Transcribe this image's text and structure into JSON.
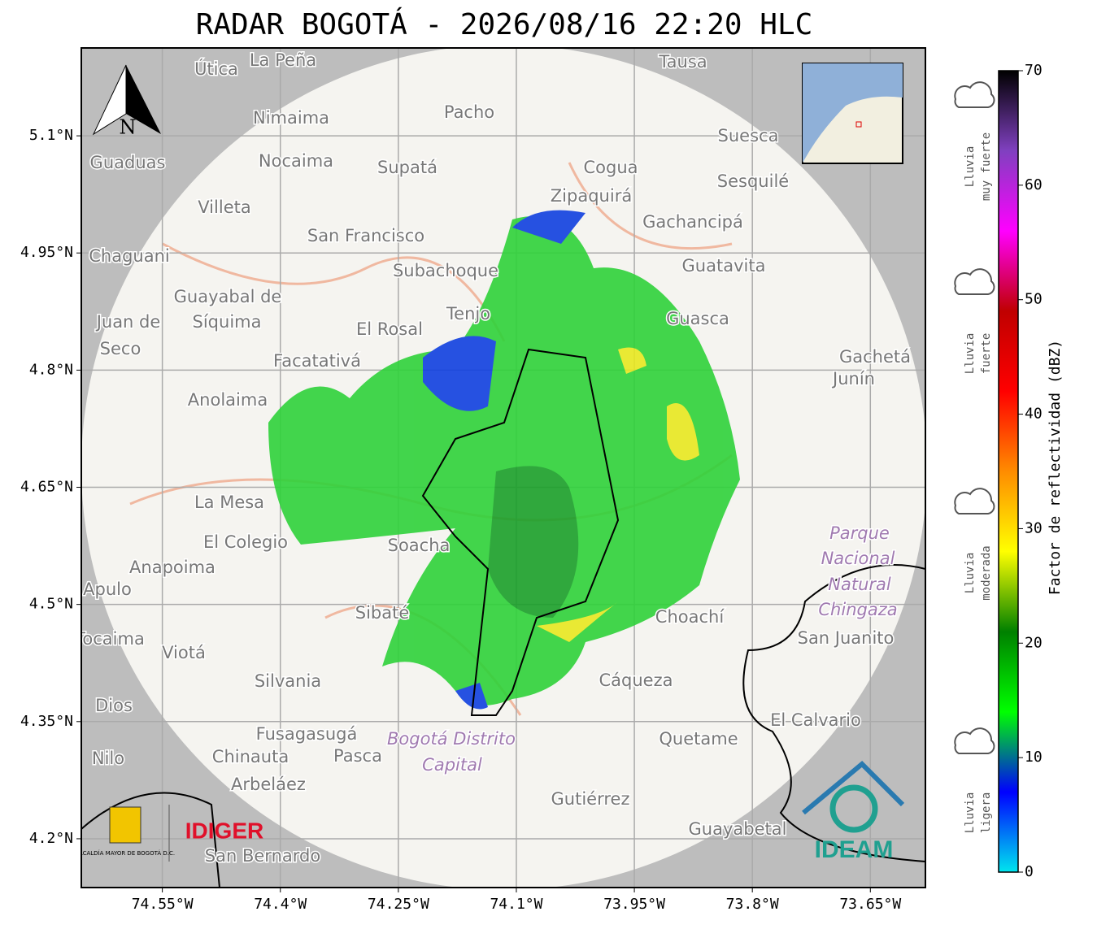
{
  "title": "RADAR BOGOTÁ - 2026/08/16 22:20 HLC",
  "map": {
    "xlim": [
      -74.653,
      -73.58
    ],
    "ylim": [
      4.1375,
      5.2125
    ],
    "xticks": [
      {
        "value": -74.55,
        "label": "74.55°W"
      },
      {
        "value": -74.4,
        "label": "74.4°W"
      },
      {
        "value": -74.25,
        "label": "74.25°W"
      },
      {
        "value": -74.1,
        "label": "74.1°W"
      },
      {
        "value": -73.95,
        "label": "73.95°W"
      },
      {
        "value": -73.8,
        "label": "73.8°W"
      },
      {
        "value": -73.65,
        "label": "73.65°W"
      }
    ],
    "yticks": [
      {
        "value": 4.2,
        "label": "4.2°N"
      },
      {
        "value": 4.35,
        "label": "4.35°N"
      },
      {
        "value": 4.5,
        "label": "4.5°N"
      },
      {
        "value": 4.65,
        "label": "4.65°N"
      },
      {
        "value": 4.8,
        "label": "4.8°N"
      },
      {
        "value": 4.95,
        "label": "4.95°N"
      },
      {
        "value": 5.1,
        "label": "5.1°N"
      }
    ],
    "grid": true,
    "north": "N",
    "places": [
      "Útica",
      "La Peña",
      "Tausa",
      "Pacho",
      "Nimaima",
      "Guaduas",
      "Nocaima",
      "Supatá",
      "Cogua",
      "Suesca",
      "Sesquilé",
      "Zipaquirá",
      "Villeta",
      "Gachancipá",
      "San Francisco",
      "Chaguani",
      "Subachoque",
      "Guatavita",
      "Guayabal de",
      "Síquima",
      "Tenjo",
      "Guasca",
      "Juan de",
      "Seco",
      "El Rosal",
      "Facatativá",
      "Gachetá",
      "Junín",
      "Anolaima",
      "La Mesa",
      "El Colegio",
      "Soacha",
      "Anapoima",
      "Apulo",
      "Parque",
      "Nacional",
      "Natural",
      "Chingaza",
      "Sibaté",
      "Choachí",
      "San Juanito",
      "Viotá",
      "Silvania",
      "Cáqueza",
      "Dios",
      "Fusagasugá",
      "Bogotá Distrito",
      "Capital",
      "Quetame",
      "El Calvario",
      "Nilo",
      "Chinauta",
      "Pasca",
      "Arbeláez",
      "Gutiérrez",
      "Guayabetal",
      "San Bernardo",
      "Tocaima"
    ]
  },
  "logos": {
    "alcaldia": "ALCALDÍA MAYOR DE BOGOTÁ D.C.",
    "idiger": "IDIGER",
    "ideam": "IDEAM"
  },
  "colorbar": {
    "range": [
      0,
      70
    ],
    "ticks": [
      0,
      10,
      20,
      30,
      40,
      50,
      60,
      70
    ],
    "label": "Factor de reflectividad (dBZ)",
    "colors": [
      "#00e5ee",
      "#0000ff",
      "#00ff00",
      "#008000",
      "#ffff00",
      "#ff8c00",
      "#ff0000",
      "#c00000",
      "#ff00ff",
      "#8040c0",
      "#000000"
    ],
    "classes": [
      [
        "Lluvia",
        "muy fuerte"
      ],
      [
        "Lluvia",
        "fuerte"
      ],
      [
        "Lluvia",
        "moderada"
      ],
      [
        "Lluvia",
        "ligera"
      ]
    ]
  }
}
